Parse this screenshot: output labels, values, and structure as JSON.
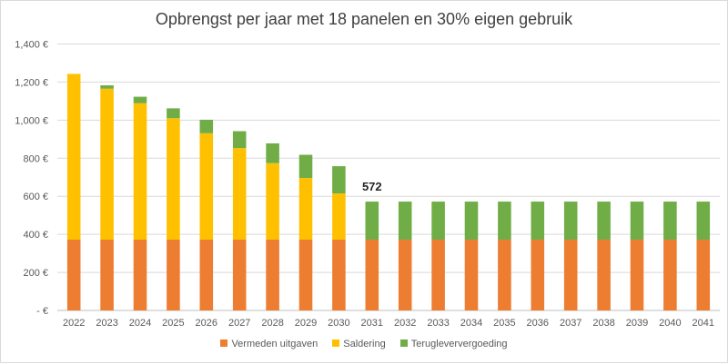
{
  "chart_data": {
    "type": "bar",
    "stacked": true,
    "title": "Opbrengst per jaar met 18 panelen en 30% eigen gebruik",
    "categories": [
      "2022",
      "2023",
      "2024",
      "2025",
      "2026",
      "2027",
      "2028",
      "2029",
      "2030",
      "2031",
      "2032",
      "2033",
      "2034",
      "2035",
      "2036",
      "2037",
      "2038",
      "2039",
      "2040",
      "2041"
    ],
    "series": [
      {
        "name": "Vermeden uitgaven",
        "color": "#ED7D31",
        "values": [
          372,
          372,
          372,
          372,
          372,
          372,
          372,
          372,
          372,
          372,
          372,
          372,
          372,
          372,
          372,
          372,
          372,
          372,
          372,
          372
        ]
      },
      {
        "name": "Saldering",
        "color": "#FFC000",
        "values": [
          871,
          793,
          717,
          638,
          559,
          481,
          402,
          324,
          243,
          0,
          0,
          0,
          0,
          0,
          0,
          0,
          0,
          0,
          0,
          0
        ]
      },
      {
        "name": "Terugleververgoeding",
        "color": "#70AD47",
        "values": [
          0,
          18,
          34,
          52,
          71,
          89,
          104,
          122,
          143,
          200,
          200,
          200,
          200,
          200,
          200,
          200,
          200,
          200,
          200,
          200
        ]
      }
    ],
    "ylim": [
      0,
      1400
    ],
    "yticks": [
      0,
      200,
      400,
      600,
      800,
      1000,
      1200,
      1400
    ],
    "ytick_labels": [
      "- €",
      "200 €",
      "400 €",
      "600 €",
      "800 €",
      "1,000 €",
      "1,200 €",
      "1,400 €"
    ],
    "annotations": [
      {
        "category": "2031",
        "text": "572"
      }
    ],
    "grid": true,
    "legend": "bottom"
  }
}
